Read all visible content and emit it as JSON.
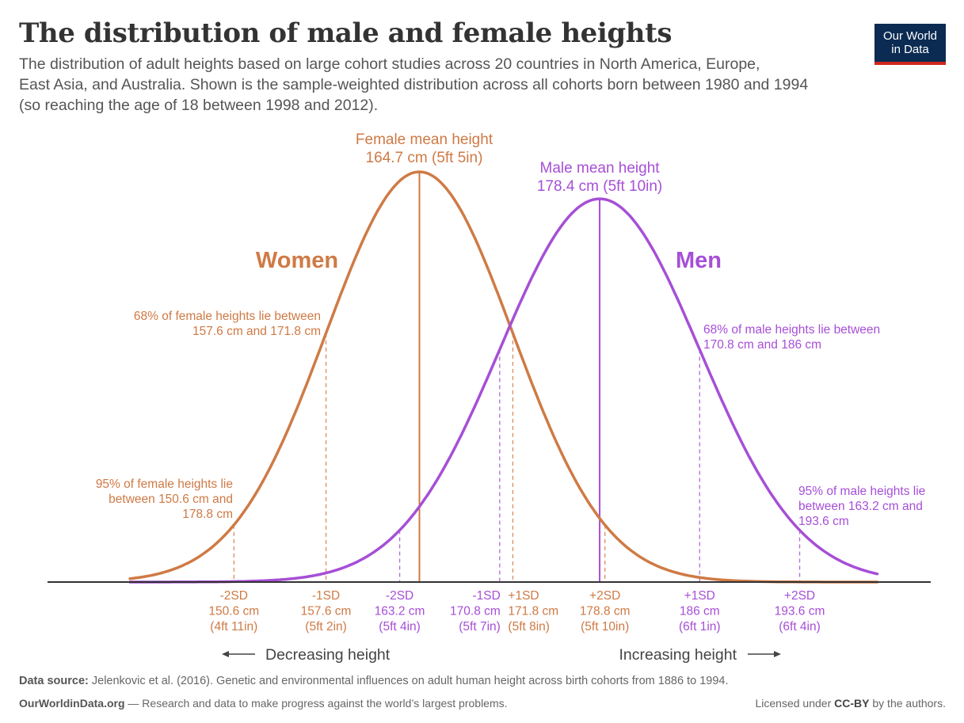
{
  "title": "The distribution of male and female heights",
  "subtitle": [
    "The distribution of adult heights based on large cohort studies across 20 countries in North America, Europe,",
    "East Asia, and Australia. Shown is the sample-weighted distribution across all cohorts born between 1980 and 1994",
    "(so reaching the age of 18 between 1998 and 2012)."
  ],
  "logo": {
    "line1": "Our World",
    "line2": "in Data"
  },
  "colors": {
    "female": "#cf7a45",
    "male": "#a64fd6",
    "axis": "#333333",
    "text": "#555555",
    "logo_bg": "#0b2b52",
    "logo_bar": "#ce261e"
  },
  "chart_data": {
    "type": "line",
    "x_unit": "cm",
    "xlim": [
      140,
      202
    ],
    "series": [
      {
        "name": "Women",
        "mean": 164.7,
        "sd": 7.1,
        "mean_label": [
          "Female mean height",
          "164.7 cm (5ft 5in)"
        ],
        "range68_label": [
          "68% of female heights lie between",
          "157.6 cm and 171.8 cm"
        ],
        "range95_label": [
          "95% of female heights lie",
          "between 150.6 cm and",
          "178.8 cm"
        ],
        "markers": [
          {
            "x": 150.6,
            "lines": [
              "-2SD",
              "150.6 cm",
              "(4ft 11in)"
            ]
          },
          {
            "x": 157.6,
            "lines": [
              "-1SD",
              "157.6 cm",
              "(5ft 2in)"
            ]
          },
          {
            "x": 171.8,
            "lines": [
              "+1SD",
              "171.8 cm",
              "(5ft 8in)"
            ]
          },
          {
            "x": 178.8,
            "lines": [
              "+2SD",
              "178.8 cm",
              "(5ft 10in)"
            ]
          }
        ]
      },
      {
        "name": "Men",
        "mean": 178.4,
        "sd": 7.6,
        "mean_label": [
          "Male mean height",
          "178.4 cm (5ft 10in)"
        ],
        "range68_label": [
          "68% of male heights lie between",
          "170.8 cm and 186 cm"
        ],
        "range95_label": [
          "95% of male heights lie",
          "between 163.2 cm and",
          "193.6 cm"
        ],
        "markers": [
          {
            "x": 163.2,
            "lines": [
              "-2SD",
              "163.2 cm",
              "(5ft 4in)"
            ]
          },
          {
            "x": 170.8,
            "lines": [
              "-1SD",
              "170.8 cm",
              "(5ft 7in)"
            ]
          },
          {
            "x": 186.0,
            "lines": [
              "+1SD",
              "186 cm",
              "(6ft 1in)"
            ]
          },
          {
            "x": 193.6,
            "lines": [
              "+2SD",
              "193.6 cm",
              "(6ft 4in)"
            ]
          }
        ]
      }
    ],
    "direction_left": "Decreasing height",
    "direction_right": "Increasing height"
  },
  "footer": {
    "source_label": "Data source:",
    "source_text": "Jelenkovic et al. (2016). Genetic and environmental influences on adult human height across birth cohorts from 1886 to 1994.",
    "site": "OurWorldinData.org",
    "tagline": " — Research and data to make progress against the world’s largest problems.",
    "license_pre": "Licensed under ",
    "license": "CC-BY",
    "license_post": " by the authors."
  }
}
